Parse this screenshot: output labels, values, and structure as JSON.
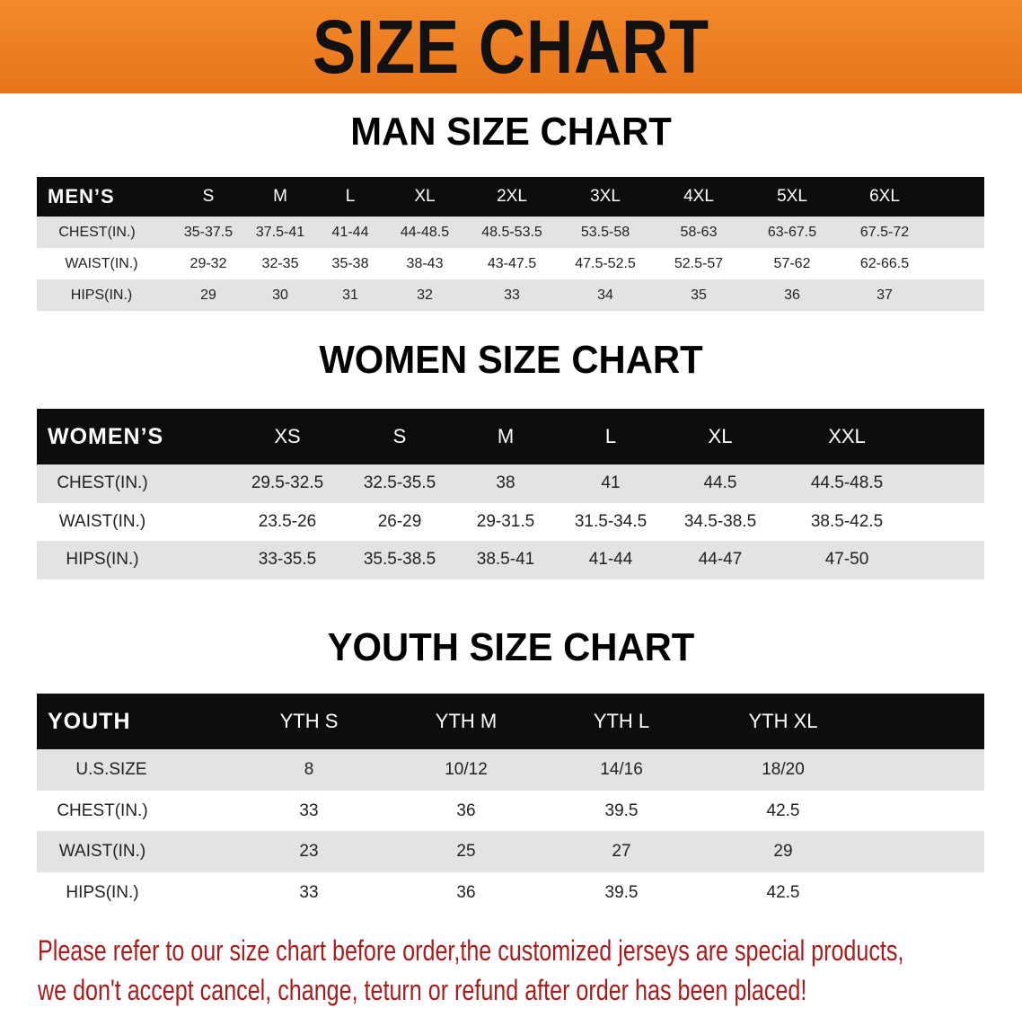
{
  "banner": {
    "title": "SIZE CHART",
    "color": "#ec7e22"
  },
  "men": {
    "title": "MAN SIZE CHART",
    "header": [
      "MEN’S",
      "S",
      "M",
      "L",
      "XL",
      "2XL",
      "3XL",
      "4XL",
      "5XL",
      "6XL"
    ],
    "rows": [
      [
        "CHEST(IN.)",
        "35-37.5",
        "37.5-41",
        "41-44",
        "44-48.5",
        "48.5-53.5",
        "53.5-58",
        "58-63",
        "63-67.5",
        "67.5-72"
      ],
      [
        "WAIST(IN.)",
        "29-32",
        "32-35",
        "35-38",
        "38-43",
        "43-47.5",
        "47.5-52.5",
        "52.5-57",
        "57-62",
        "62-66.5"
      ],
      [
        "HIPS(IN.)",
        "29",
        "30",
        "31",
        "32",
        "33",
        "34",
        "35",
        "36",
        "37"
      ]
    ]
  },
  "women": {
    "title": "WOMEN SIZE CHART",
    "header": [
      "WOMEN’S",
      "XS",
      "S",
      "M",
      "L",
      "XL",
      "XXL"
    ],
    "rows": [
      [
        "CHEST(IN.)",
        "29.5-32.5",
        "32.5-35.5",
        "38",
        "41",
        "44.5",
        "44.5-48.5"
      ],
      [
        "WAIST(IN.)",
        "23.5-26",
        "26-29",
        "29-31.5",
        "31.5-34.5",
        "34.5-38.5",
        "38.5-42.5"
      ],
      [
        "HIPS(IN.)",
        "33-35.5",
        "35.5-38.5",
        "38.5-41",
        "41-44",
        "44-47",
        "47-50"
      ]
    ]
  },
  "youth": {
    "title": "YOUTH SIZE CHART",
    "header": [
      "YOUTH",
      "YTH S",
      "YTH M",
      "YTH L",
      "YTH XL"
    ],
    "rows": [
      [
        "U.S.SIZE",
        "8",
        "10/12",
        "14/16",
        "18/20"
      ],
      [
        "CHEST(IN.)",
        "33",
        "36",
        "39.5",
        "42.5"
      ],
      [
        "WAIST(IN.)",
        "23",
        "25",
        "27",
        "29"
      ],
      [
        "HIPS(IN.)",
        "33",
        "36",
        "39.5",
        "42.5"
      ]
    ]
  },
  "footer": {
    "line1": "Please refer to our size chart before order,the customized jerseys are special products,",
    "line2": "we don't accept cancel, change, teturn or refund after order has been placed!",
    "color": "#a81c1c"
  }
}
